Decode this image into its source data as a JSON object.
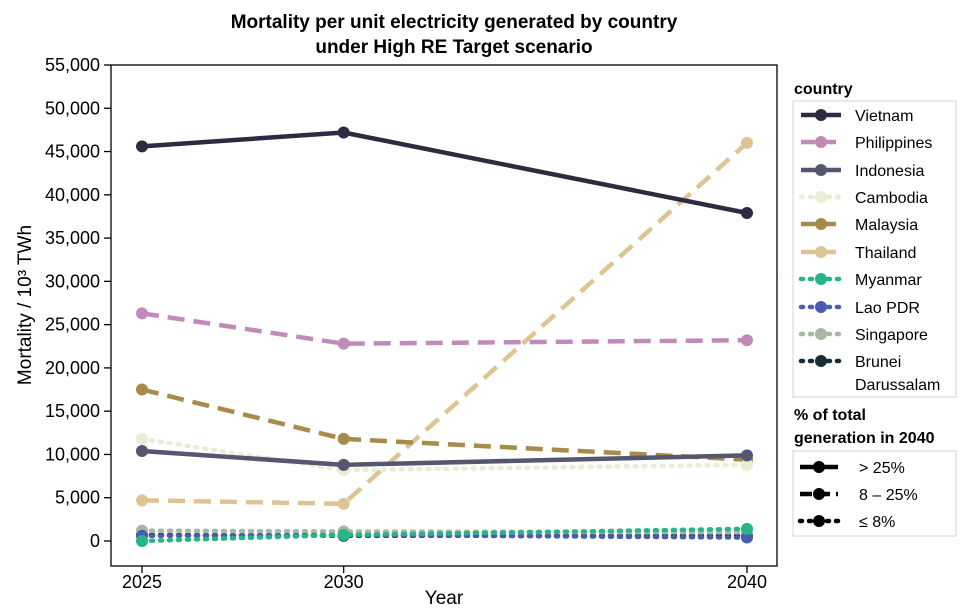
{
  "chart_data": {
    "type": "line",
    "title_lines": [
      "Mortality per unit electricity generated by country",
      "under High RE Target scenario"
    ],
    "xlabel": "Year",
    "ylabel": "Mortality / 10³ TWh",
    "x": [
      2025,
      2030,
      2040
    ],
    "x_ticks": [
      "2025",
      "2030",
      "2040"
    ],
    "xlim": [
      2025,
      2040
    ],
    "ylim": [
      -3000,
      55000
    ],
    "y_ticks": [
      0,
      5000,
      10000,
      15000,
      20000,
      25000,
      30000,
      35000,
      40000,
      45000,
      50000,
      55000
    ],
    "y_tick_labels": [
      "0",
      "5,000",
      "10,000",
      "15,000",
      "20,000",
      "25,000",
      "30,000",
      "35,000",
      "40,000",
      "45,000",
      "50,000",
      "55,000"
    ],
    "grid": false,
    "legend_placement": "right",
    "legend_title": "country",
    "series": [
      {
        "name": "Vietnam",
        "values": [
          45600,
          47200,
          37900
        ],
        "color": "#2d2a42",
        "style": "solid"
      },
      {
        "name": "Philippines",
        "values": [
          26300,
          22800,
          23200
        ],
        "color": "#c08ab9",
        "style": "dashed"
      },
      {
        "name": "Indonesia",
        "values": [
          10400,
          8800,
          9900
        ],
        "color": "#55566f",
        "style": "solid"
      },
      {
        "name": "Cambodia",
        "values": [
          11800,
          8200,
          8800
        ],
        "color": "#e9edd5",
        "style": "dotted"
      },
      {
        "name": "Malaysia",
        "values": [
          17500,
          11800,
          9400
        ],
        "color": "#a88a4a",
        "style": "dashed"
      },
      {
        "name": "Thailand",
        "values": [
          4700,
          4300,
          46000
        ],
        "color": "#ddc493",
        "style": "dashed"
      },
      {
        "name": "Myanmar",
        "values": [
          0,
          700,
          1400
        ],
        "color": "#27b588",
        "style": "dotted"
      },
      {
        "name": "Lao PDR",
        "values": [
          600,
          700,
          400
        ],
        "color": "#4a5cb0",
        "style": "dotted"
      },
      {
        "name": "Singapore",
        "values": [
          1200,
          1100,
          1000
        ],
        "color": "#a7b9a2",
        "style": "dotted"
      },
      {
        "name": "Brunei Darussalam",
        "legend_lines": [
          "Brunei",
          "Darussalam"
        ],
        "values": [
          700,
          600,
          600
        ],
        "color": "#182c35",
        "style": "dotted"
      }
    ],
    "line_style_legend": {
      "title_lines": [
        "% of total",
        "generation in 2040"
      ],
      "items": [
        {
          "label": "> 25%",
          "style": "solid"
        },
        {
          "label": "8 – 25%",
          "style": "dashed"
        },
        {
          "label": "≤ 8%",
          "style": "dotted"
        }
      ]
    }
  }
}
